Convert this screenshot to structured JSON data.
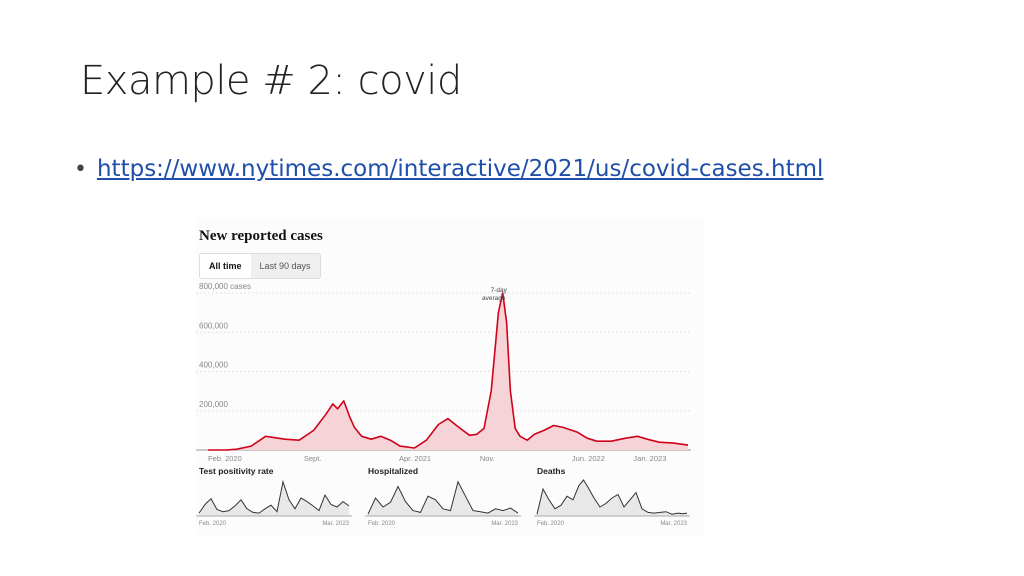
{
  "slide": {
    "title": "Example # 2: covid",
    "bullet_link": "https://www.nytimes.com/interactive/2021/us/covid-cases.html"
  },
  "nyt": {
    "title": "New reported cases",
    "tabs": [
      "All time",
      "Last 90 days"
    ],
    "active_tab": "All time",
    "annotation": [
      "7-day",
      "average"
    ]
  },
  "colors": {
    "cases_line": "#d0021b",
    "cases_fill": "#f6d3d6",
    "small_line": "#333333",
    "small_fill": "#e8e8e8",
    "link": "#1f4fa8"
  },
  "chart_data": [
    {
      "type": "area",
      "title": "New reported cases",
      "ylabel": "",
      "ylim": [
        0,
        800000
      ],
      "y_ticks": [
        "800,000 cases",
        "600,000",
        "400,000",
        "200,000"
      ],
      "y_tick_values": [
        800000,
        600000,
        400000,
        200000
      ],
      "x_ticks": [
        "Feb. 2020",
        "Sept.",
        "Apr. 2021",
        "Nov.",
        "Jun. 2022",
        "Jan. 2023"
      ],
      "x_tick_positions": [
        0.0,
        0.1997,
        0.3979,
        0.5663,
        0.7582,
        0.8863
      ],
      "series": [
        {
          "name": "7-day average",
          "x": [
            0.0,
            0.04,
            0.06,
            0.09,
            0.12,
            0.16,
            0.19,
            0.22,
            0.245,
            0.26,
            0.27,
            0.283,
            0.295,
            0.305,
            0.32,
            0.34,
            0.36,
            0.38,
            0.4,
            0.43,
            0.455,
            0.48,
            0.5,
            0.52,
            0.545,
            0.56,
            0.575,
            0.59,
            0.605,
            0.614,
            0.622,
            0.63,
            0.64,
            0.65,
            0.665,
            0.68,
            0.7,
            0.72,
            0.74,
            0.77,
            0.79,
            0.81,
            0.84,
            0.87,
            0.895,
            0.915,
            0.94,
            0.97,
            1.0
          ],
          "values": [
            0,
            500,
            4000,
            20000,
            70000,
            55000,
            50000,
            100000,
            180000,
            235000,
            210000,
            250000,
            170000,
            115000,
            70000,
            55000,
            70000,
            50000,
            20000,
            10000,
            50000,
            130000,
            160000,
            120000,
            75000,
            80000,
            110000,
            300000,
            700000,
            800000,
            650000,
            300000,
            110000,
            70000,
            50000,
            80000,
            100000,
            125000,
            115000,
            90000,
            60000,
            45000,
            45000,
            60000,
            70000,
            55000,
            40000,
            35000,
            25000
          ]
        }
      ]
    },
    {
      "type": "area",
      "title": "Test positivity rate",
      "x_ticks": [
        "Feb. 2020",
        "Mar. 2023"
      ],
      "series": [
        {
          "x": [
            0.0,
            0.04,
            0.08,
            0.12,
            0.16,
            0.2,
            0.24,
            0.28,
            0.32,
            0.36,
            0.4,
            0.44,
            0.48,
            0.52,
            0.56,
            0.6,
            0.64,
            0.68,
            0.72,
            0.76,
            0.8,
            0.84,
            0.88,
            0.92,
            0.96,
            1.0
          ],
          "values": [
            0.08,
            0.32,
            0.48,
            0.18,
            0.12,
            0.15,
            0.28,
            0.45,
            0.2,
            0.1,
            0.08,
            0.2,
            0.3,
            0.12,
            0.95,
            0.45,
            0.2,
            0.5,
            0.4,
            0.28,
            0.15,
            0.58,
            0.32,
            0.25,
            0.4,
            0.28
          ]
        }
      ]
    },
    {
      "type": "area",
      "title": "Hospitalized",
      "x_ticks": [
        "Feb. 2020",
        "Mar. 2023"
      ],
      "series": [
        {
          "x": [
            0.0,
            0.05,
            0.1,
            0.15,
            0.2,
            0.25,
            0.3,
            0.35,
            0.4,
            0.45,
            0.5,
            0.55,
            0.6,
            0.65,
            0.7,
            0.75,
            0.8,
            0.85,
            0.9,
            0.95,
            1.0
          ],
          "values": [
            0.05,
            0.5,
            0.25,
            0.38,
            0.82,
            0.4,
            0.15,
            0.1,
            0.55,
            0.45,
            0.2,
            0.15,
            0.95,
            0.55,
            0.15,
            0.12,
            0.08,
            0.2,
            0.15,
            0.22,
            0.08
          ]
        }
      ]
    },
    {
      "type": "area",
      "title": "Deaths",
      "x_ticks": [
        "Feb. 2020",
        "Mar. 2023"
      ],
      "series": [
        {
          "x": [
            0.0,
            0.04,
            0.08,
            0.12,
            0.16,
            0.2,
            0.24,
            0.28,
            0.31,
            0.34,
            0.38,
            0.42,
            0.46,
            0.5,
            0.54,
            0.58,
            0.62,
            0.66,
            0.7,
            0.74,
            0.78,
            0.82,
            0.86,
            0.9,
            0.94,
            0.97,
            1.0
          ],
          "values": [
            0.05,
            0.75,
            0.45,
            0.2,
            0.3,
            0.55,
            0.45,
            0.85,
            1.0,
            0.8,
            0.5,
            0.25,
            0.35,
            0.5,
            0.6,
            0.25,
            0.45,
            0.65,
            0.2,
            0.1,
            0.08,
            0.1,
            0.12,
            0.05,
            0.08,
            0.06,
            0.08
          ]
        }
      ]
    }
  ]
}
